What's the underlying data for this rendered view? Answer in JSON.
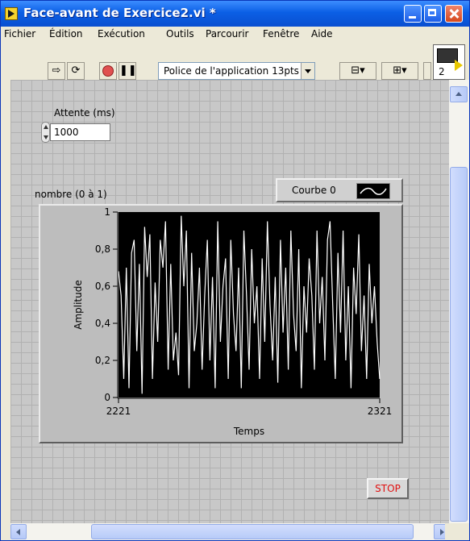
{
  "window": {
    "title": "Face-avant de Exercice2.vi *"
  },
  "menu": {
    "items": [
      "Fichier",
      "Édition",
      "Exécution",
      "Outils",
      "Parcourir",
      "Fenêtre",
      "Aide"
    ]
  },
  "toolbar": {
    "font_label": "Police de l'application 13pts",
    "icons": [
      "run-arrow-icon",
      "run-continuously-icon",
      "abort-icon",
      "pause-icon",
      "align-icon",
      "distribute-icon",
      "resize-icon"
    ]
  },
  "vi_icon": {
    "number": "2"
  },
  "controls": {
    "wait_label": "Attente (ms)",
    "wait_value": "1000",
    "stop_label": "STOP"
  },
  "graph": {
    "name_label": "nombre (0 à 1)",
    "legend_label": "Courbe 0"
  },
  "chart_data": {
    "type": "line",
    "title": "",
    "xlabel": "Temps",
    "ylabel": "Amplitude",
    "xlim": [
      2221,
      2321
    ],
    "ylim": [
      0,
      1
    ],
    "x_ticks": [
      "2221",
      "2321"
    ],
    "y_ticks": [
      "0",
      "0,2",
      "0,4",
      "0,6",
      "0,8",
      "1"
    ],
    "series": [
      {
        "name": "Courbe 0",
        "color": "#ffffff",
        "x_start": 2221,
        "x_step": 1,
        "values": [
          0.68,
          0.55,
          0.1,
          0.7,
          0.05,
          0.78,
          0.85,
          0.25,
          0.72,
          0.02,
          0.92,
          0.65,
          0.88,
          0.1,
          0.62,
          0.3,
          0.85,
          0.7,
          0.95,
          0.15,
          0.72,
          0.2,
          0.35,
          0.12,
          0.98,
          0.6,
          0.9,
          0.05,
          0.78,
          0.25,
          0.4,
          0.7,
          0.15,
          0.55,
          0.85,
          0.2,
          0.65,
          0.05,
          0.95,
          0.3,
          0.6,
          0.75,
          0.1,
          0.85,
          0.45,
          0.25,
          0.7,
          0.05,
          0.9,
          0.55,
          0.15,
          0.8,
          0.4,
          0.6,
          0.1,
          0.75,
          0.3,
          0.95,
          0.5,
          0.2,
          0.65,
          0.08,
          0.85,
          0.35,
          0.7,
          0.15,
          0.9,
          0.45,
          0.25,
          0.8,
          0.05,
          0.6,
          0.35,
          0.75,
          0.55,
          0.15,
          0.9,
          0.4,
          0.65,
          0.2,
          0.85,
          0.95,
          0.5,
          0.1,
          0.78,
          0.35,
          0.9,
          0.2,
          0.6,
          0.05,
          0.7,
          0.45,
          0.88,
          0.25,
          0.55,
          0.1,
          0.72,
          0.4,
          0.6,
          0.3,
          0.1
        ]
      }
    ]
  }
}
